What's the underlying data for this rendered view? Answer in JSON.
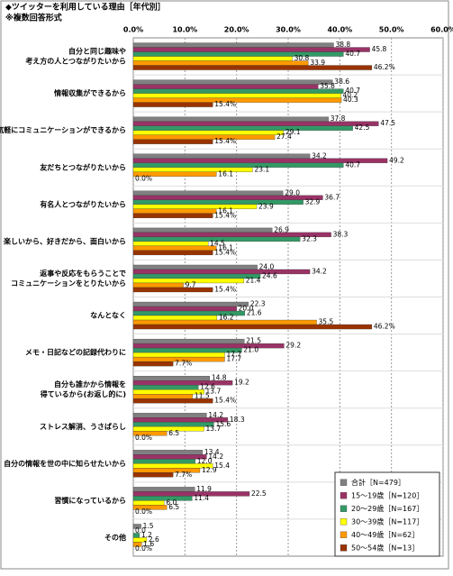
{
  "chart_data": {
    "type": "hbar",
    "title": "◆ツイッターを利用している理由［年代別］",
    "subtitle": "※複数回答形式",
    "categories": [
      [
        "自分と同じ趣味や",
        "考え方の人とつながりたいから"
      ],
      [
        "情報収集ができるから"
      ],
      [
        "気軽にコミュニケーションができるから"
      ],
      [
        "友だちとつながりたいから"
      ],
      [
        "有名人とつながりたいから"
      ],
      [
        "楽しいから、好きだから、面白いから"
      ],
      [
        "返事や反応をもらうことで",
        "コミュニケーションをとりたいから"
      ],
      [
        "なんとなく"
      ],
      [
        "メモ・日記などの記録代わりに"
      ],
      [
        "自分も誰かから情報を",
        "得ているから(お返し的に)"
      ],
      [
        "ストレス解消、うさばらし"
      ],
      [
        "自分の情報を世の中に知らせたいから"
      ],
      [
        "習慣になっているから"
      ],
      [
        "その他"
      ]
    ],
    "series": [
      {
        "name": "合計［N=479］",
        "color": "#808080",
        "values": [
          38.8,
          38.6,
          37.8,
          34.2,
          29.0,
          26.9,
          24.0,
          22.3,
          21.5,
          14.8,
          14.2,
          13.4,
          11.9,
          1.5
        ],
        "value_labels": [
          "38.8",
          "38.6",
          "37.8",
          "34.2",
          "29.0",
          "26.9",
          "24.0",
          "22.3",
          "21.5",
          "14.8",
          "14.2",
          "13.4",
          "11.9",
          "1.5"
        ]
      },
      {
        "name": "15～19歳［N=120］",
        "color": "#993366",
        "values": [
          45.8,
          35.8,
          47.5,
          49.2,
          36.7,
          38.3,
          34.2,
          20.0,
          29.2,
          19.2,
          18.3,
          14.2,
          22.5,
          0.0
        ],
        "value_labels": [
          "45.8",
          "35.8",
          "47.5",
          "49.2",
          "36.7",
          "38.3",
          "34.2",
          "20.0",
          "29.2",
          "19.2",
          "18.3",
          "14.2",
          "22.5",
          "0.0"
        ]
      },
      {
        "name": "20～29歳［N=167］",
        "color": "#339966",
        "values": [
          40.7,
          40.7,
          42.5,
          40.7,
          32.9,
          32.3,
          24.6,
          21.6,
          21.0,
          12.6,
          15.6,
          12.0,
          11.4,
          1.2
        ],
        "value_labels": [
          "40.7",
          "40.7",
          "42.5",
          "40.7",
          "32.9",
          "32.3",
          "24.6",
          "21.6",
          "21.0",
          "12.6",
          "15.6",
          "12.0",
          "11.4",
          "1.2"
        ]
      },
      {
        "name": "30～39歳［N=117］",
        "color": "#ffff00",
        "values": [
          30.8,
          40.2,
          29.1,
          23.1,
          23.9,
          14.5,
          21.4,
          16.2,
          17.7,
          13.7,
          13.7,
          15.4,
          6.0,
          2.6
        ],
        "value_labels": [
          "30.8",
          "40.2",
          "29.1",
          "23.1",
          "23.9",
          "14.5",
          "21.4",
          "16.2",
          "17.7",
          "13.7",
          "13.7",
          "15.4",
          "6.0",
          "2.6"
        ]
      },
      {
        "name": "40～49歳［N=62］",
        "color": "#ff9900",
        "values": [
          33.9,
          40.3,
          27.4,
          16.1,
          16.1,
          16.1,
          9.7,
          35.5,
          17.7,
          11.5,
          6.5,
          12.9,
          6.5,
          1.6
        ],
        "value_labels": [
          "33.9",
          "40.3",
          "27.4",
          "16.1",
          "16.1",
          "16.1",
          "9.7",
          "35.5",
          "17.7",
          "11.5",
          "6.5",
          "12.9",
          "6.5",
          "1.6"
        ]
      },
      {
        "name": "50～54歳［N=13］",
        "color": "#993300",
        "values": [
          46.2,
          15.4,
          15.4,
          0.0,
          15.4,
          15.4,
          15.4,
          46.2,
          7.7,
          15.4,
          0.0,
          7.7,
          0.0,
          0.0
        ],
        "value_labels": [
          "46.2%",
          "15.4%",
          "15.4%",
          "0.0%",
          "15.4%",
          "15.4%",
          "15.4%",
          "46.2%",
          "7.7%",
          "15.4%",
          "0.0%",
          "7.7%",
          "0.0%",
          "0.0%"
        ]
      }
    ],
    "xlim": [
      0,
      60
    ],
    "xticks": [
      {
        "value": 0,
        "label": "0.0%"
      },
      {
        "value": 10,
        "label": "10.0%"
      },
      {
        "value": 20,
        "label": "20.0%"
      },
      {
        "value": 30,
        "label": "30.0%"
      },
      {
        "value": 40,
        "label": "40.0%"
      },
      {
        "value": 50,
        "label": "50.0%"
      },
      {
        "value": 60,
        "label": "60.0%"
      }
    ],
    "grid": true,
    "legend": "lower right"
  }
}
